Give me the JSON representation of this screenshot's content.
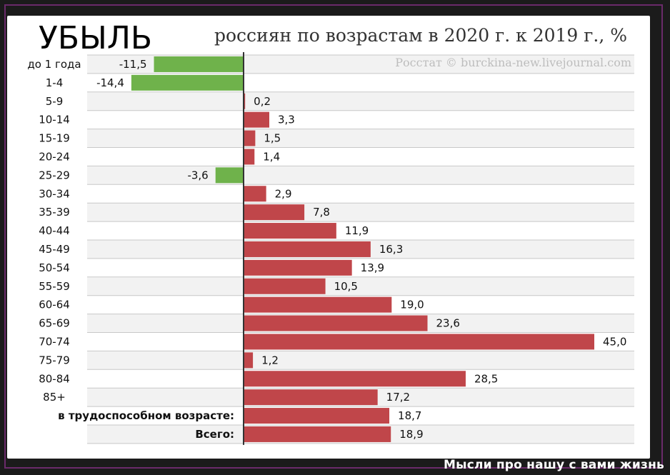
{
  "chart_data": {
    "type": "bar",
    "orientation": "horizontal",
    "title_handwritten": "УБЫЛЬ",
    "title": "россиян по возрастам в 2020 г. к 2019 г., %",
    "source": "Росстат © burckina-new.livejournal.com",
    "categories": [
      "до 1 года",
      "1-4",
      "5-9",
      "10-14",
      "15-19",
      "20-24",
      "25-29",
      "30-34",
      "35-39",
      "40-44",
      "45-49",
      "50-54",
      "55-59",
      "60-64",
      "65-69",
      "70-74",
      "75-79",
      "80-84",
      "85+",
      "в трудоспособном возрасте:",
      "Всего:"
    ],
    "values": [
      -11.5,
      -14.4,
      0.2,
      3.3,
      1.5,
      1.4,
      -3.6,
      2.9,
      7.8,
      11.9,
      16.3,
      13.9,
      10.5,
      19.0,
      23.6,
      45.0,
      1.2,
      28.5,
      17.2,
      18.7,
      18.9
    ],
    "value_labels": [
      "-11,5",
      "-14,4",
      "0,2",
      "3,3",
      "1,5",
      "1,4",
      "-3,6",
      "2,9",
      "7,8",
      "11,9",
      "16,3",
      "13,9",
      "10,5",
      "19,0",
      "23,6",
      "45,0",
      "1,2",
      "28,5",
      "17,2",
      "18,7",
      "18,9"
    ],
    "bold_categories": [
      "в трудоспособном возрасте:",
      "Всего:"
    ],
    "xlim": [
      -15,
      50
    ],
    "grid": true,
    "colors": {
      "positive": "#c0464a",
      "negative": "#6fb24b",
      "axis": "#333333",
      "grid": "#c8c8c8",
      "band": "#f2f2f2"
    }
  },
  "caption": "Мысли про нашу с вами жизнь"
}
